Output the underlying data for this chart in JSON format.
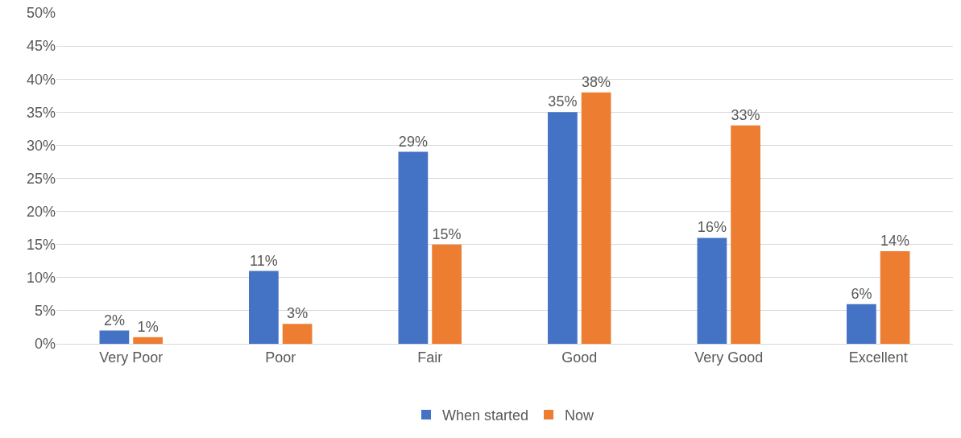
{
  "chart_data": {
    "type": "bar",
    "categories": [
      "Very Poor",
      "Poor",
      "Fair",
      "Good",
      "Very Good",
      "Excellent"
    ],
    "series": [
      {
        "name": "When started",
        "color": "#4472c4",
        "values": [
          2,
          11,
          29,
          35,
          16,
          6
        ],
        "value_labels": [
          "2%",
          "11%",
          "29%",
          "35%",
          "16%",
          "6%"
        ]
      },
      {
        "name": "Now",
        "color": "#ed7d31",
        "values": [
          1,
          3,
          15,
          38,
          33,
          14
        ],
        "value_labels": [
          "1%",
          "3%",
          "15%",
          "38%",
          "33%",
          "14%"
        ]
      }
    ],
    "ylim": [
      0,
      50
    ],
    "yticks": [
      {
        "value": 0,
        "label": "0%"
      },
      {
        "value": 5,
        "label": "5%"
      },
      {
        "value": 10,
        "label": "10%"
      },
      {
        "value": 15,
        "label": "15%"
      },
      {
        "value": 20,
        "label": "20%"
      },
      {
        "value": 25,
        "label": "25%"
      },
      {
        "value": 30,
        "label": "30%"
      },
      {
        "value": 35,
        "label": "35%"
      },
      {
        "value": 40,
        "label": "40%"
      },
      {
        "value": 45,
        "label": "45%"
      },
      {
        "value": 50,
        "label": "50%"
      }
    ],
    "grid": "y",
    "legend": "bottom"
  }
}
